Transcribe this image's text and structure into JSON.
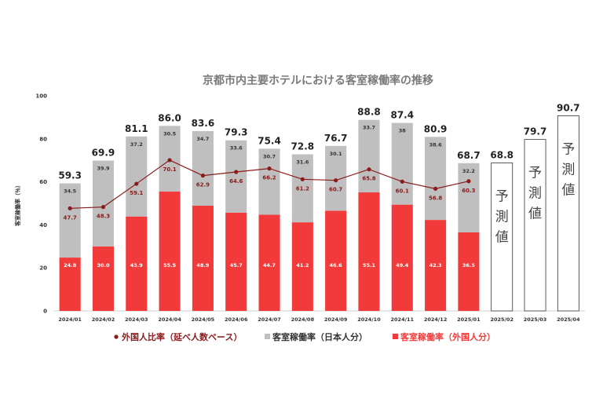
{
  "chart_data": {
    "type": "bar",
    "title": "京都市内主要ホテルにおける客室稼働率の推移",
    "ylabel": "客室稼働率（％）",
    "ylim": [
      0,
      100
    ],
    "yticks": [
      0,
      20,
      40,
      60,
      80,
      100
    ],
    "categories": [
      "2024/01",
      "2024/02",
      "2024/03",
      "2024/04",
      "2024/05",
      "2024/06",
      "2024/07",
      "2024/08",
      "2024/09",
      "2024/10",
      "2024/11",
      "2024/12",
      "2025/01",
      "2025/02",
      "2025/03",
      "2025/04"
    ],
    "totals": [
      "59.3",
      "69.9",
      "81.1",
      "86.0",
      "83.6",
      "79.3",
      "75.4",
      "72.8",
      "76.7",
      "88.8",
      "87.4",
      "80.9",
      "68.7",
      "68.8",
      "79.7",
      "90.7"
    ],
    "series": [
      {
        "name": "客室稼働率（外国人分）",
        "color": "#f23a3a",
        "values": [
          24.8,
          30.0,
          43.9,
          55.5,
          48.9,
          45.7,
          44.7,
          41.2,
          46.6,
          55.1,
          49.4,
          42.3,
          36.5,
          null,
          null,
          null
        ]
      },
      {
        "name": "客室稼働率（日本人分）",
        "color": "#bfbfbf",
        "values": [
          34.5,
          39.9,
          37.2,
          30.5,
          34.7,
          33.6,
          30.7,
          31.6,
          30.1,
          33.7,
          38.0,
          38.6,
          32.2,
          null,
          null,
          null
        ]
      },
      {
        "name": "外国人比率（延べ人数ベース）",
        "color": "#8b1a1a",
        "type": "line",
        "values": [
          47.7,
          48.3,
          59.1,
          70.1,
          62.9,
          64.6,
          66.2,
          61.2,
          60.7,
          65.8,
          60.1,
          56.8,
          60.3,
          null,
          null,
          null
        ]
      }
    ],
    "forecast_label_chars": [
      "予",
      "測",
      "値"
    ],
    "legend_position": "bottom",
    "grid": false
  }
}
